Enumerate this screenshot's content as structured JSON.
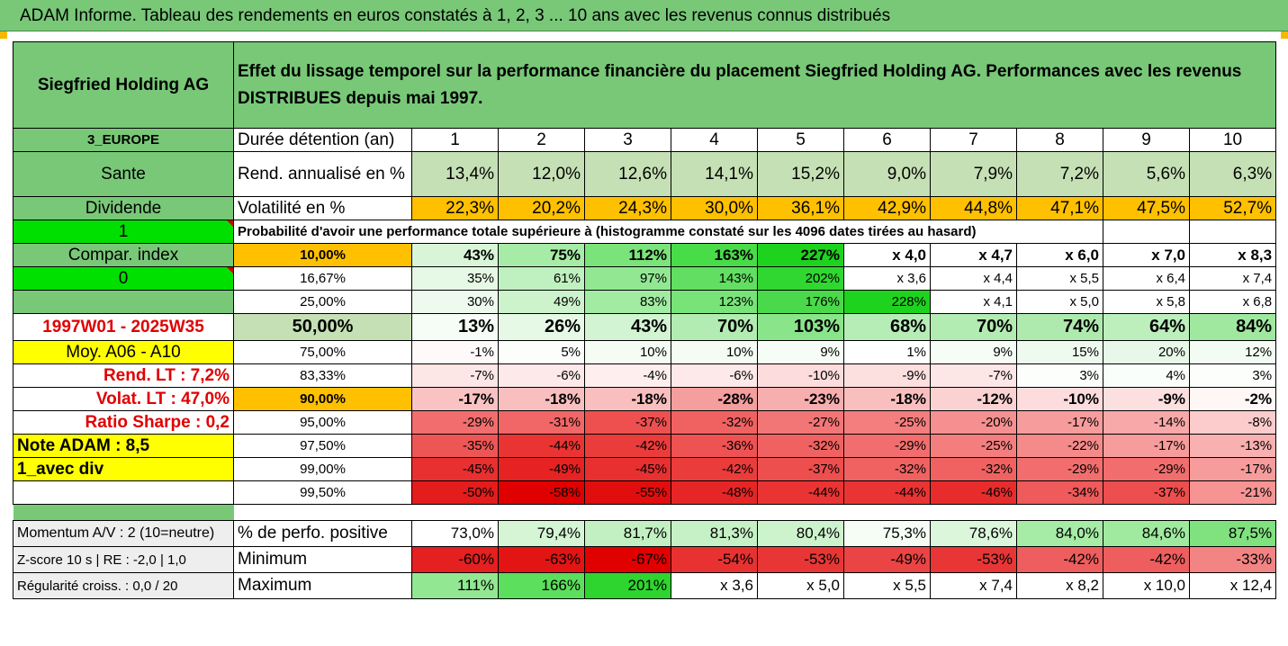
{
  "header": {
    "title": "ADAM Informe. Tableau des rendements en euros constatés à 1, 2, 3 ... 10 ans avec les revenus connus distribués"
  },
  "side": {
    "company": "Siegfried Holding AG",
    "region": "3_EUROPE",
    "sector": "Sante",
    "mode": "Dividende",
    "flag1": "1",
    "compar_label": "Compar. index",
    "flag0": "0",
    "period": "1997W01 - 2025W35",
    "moy": "Moy. A06 - A10",
    "rend_lt": "Rend. LT :   7,2%",
    "volat_lt": "Volat. LT :   47,0%",
    "sharpe": "Ratio Sharpe :   0,2",
    "note": "Note ADAM : 8,5",
    "avec_div": "1_avec div",
    "momentum": "Momentum A/V : 2 (10=neutre)",
    "zscore": "Z-score 10 s  |  RE : -2,0  |  1,0",
    "regularite": "Régularité croiss. : 0,0 / 20"
  },
  "description": "Effet du lissage temporel sur la performance financière du placement Siegfried Holding AG. Performances avec les revenus DISTRIBUES depuis mai 1997.",
  "years_label": "Durée détention (an)",
  "years": [
    "1",
    "2",
    "3",
    "4",
    "5",
    "6",
    "7",
    "8",
    "9",
    "10"
  ],
  "rend": {
    "label": "Rend. annualisé en %",
    "values": [
      "13,4%",
      "12,0%",
      "12,6%",
      "14,1%",
      "15,2%",
      "9,0%",
      "7,9%",
      "7,2%",
      "5,6%",
      "6,3%"
    ]
  },
  "vol": {
    "label": "Volatilité en %",
    "values": [
      "22,3%",
      "20,2%",
      "24,3%",
      "30,0%",
      "36,1%",
      "42,9%",
      "44,8%",
      "47,1%",
      "47,5%",
      "52,7%"
    ]
  },
  "prob_title": "Probabilité d'avoir une performance totale supérieure à (histogramme constaté sur les 4096 dates tirées au hasard)",
  "prob_rows": [
    {
      "label": "10,00%",
      "values": [
        "43%",
        "75%",
        "112%",
        "163%",
        "227%",
        "x 4,0",
        "x 4,7",
        "x 6,0",
        "x 7,0",
        "x 8,3"
      ],
      "colors": [
        "#d8f5d8",
        "#a6eca6",
        "#7ae47a",
        "#48dc48",
        "#1ed31e",
        "#ffffff",
        "#ffffff",
        "#ffffff",
        "#ffffff",
        "#ffffff"
      ]
    },
    {
      "label": "16,67%",
      "values": [
        "35%",
        "61%",
        "97%",
        "143%",
        "202%",
        "x 3,6",
        "x 4,4",
        "x 5,5",
        "x 6,4",
        "x 7,4"
      ],
      "colors": [
        "#e6f8e6",
        "#bff0bf",
        "#92e892",
        "#62df62",
        "#30d730",
        "#ffffff",
        "#ffffff",
        "#ffffff",
        "#ffffff",
        "#ffffff"
      ]
    },
    {
      "label": "25,00%",
      "values": [
        "30%",
        "49%",
        "83%",
        "123%",
        "176%",
        "228%",
        "x 4,1",
        "x 5,0",
        "x 5,8",
        "x 6,8"
      ],
      "colors": [
        "#eefaee",
        "#cdf3cd",
        "#a2eba2",
        "#78e378",
        "#4ad94a",
        "#1ed31e",
        "#ffffff",
        "#ffffff",
        "#ffffff",
        "#ffffff"
      ]
    },
    {
      "label": "50,00%",
      "values": [
        "13%",
        "26%",
        "43%",
        "70%",
        "103%",
        "68%",
        "70%",
        "74%",
        "64%",
        "84%"
      ],
      "colors": [
        "#f6fdf6",
        "#e6f8e6",
        "#d2f4d2",
        "#b2ecb2",
        "#8ae58a",
        "#b6edb6",
        "#b2ecb2",
        "#aeeaae",
        "#bcefbc",
        "#a0e8a0"
      ]
    },
    {
      "label": "75,00%",
      "values": [
        "-1%",
        "5%",
        "10%",
        "10%",
        "9%",
        "1%",
        "9%",
        "15%",
        "20%",
        "12%"
      ],
      "colors": [
        "#fffafa",
        "#fbfefb",
        "#f4fcf4",
        "#f4fcf4",
        "#f6fdf6",
        "#feffff",
        "#f6fdf6",
        "#eefaee",
        "#e8f8e8",
        "#f2fcf2"
      ]
    },
    {
      "label": "83,33%",
      "values": [
        "-7%",
        "-6%",
        "-4%",
        "-6%",
        "-10%",
        "-9%",
        "-7%",
        "3%",
        "4%",
        "3%"
      ],
      "colors": [
        "#fde6e6",
        "#fde9e9",
        "#feeeee",
        "#fde9e9",
        "#fcdcdc",
        "#fcdfdf",
        "#fde6e6",
        "#fcfefc",
        "#fafefa",
        "#fcfefc"
      ]
    },
    {
      "label": "90,00%",
      "values": [
        "-17%",
        "-18%",
        "-18%",
        "-28%",
        "-23%",
        "-18%",
        "-12%",
        "-10%",
        "-9%",
        "-2%"
      ],
      "colors": [
        "#f9c3c3",
        "#f9bfbf",
        "#f9bfbf",
        "#f59e9e",
        "#f7aeae",
        "#f9bfbf",
        "#fbd2d2",
        "#fcdcdc",
        "#fcdfdf",
        "#fff6f6"
      ]
    },
    {
      "label": "95,00%",
      "values": [
        "-29%",
        "-31%",
        "-37%",
        "-32%",
        "-27%",
        "-25%",
        "-20%",
        "-17%",
        "-14%",
        "-8%"
      ],
      "colors": [
        "#f26e6e",
        "#f16666",
        "#ee5050",
        "#f06262",
        "#f37676",
        "#f47e7e",
        "#f69090",
        "#f79c9c",
        "#f8a8a8",
        "#fccccc"
      ]
    },
    {
      "label": "97,50%",
      "values": [
        "-35%",
        "-44%",
        "-42%",
        "-36%",
        "-32%",
        "-29%",
        "-25%",
        "-22%",
        "-17%",
        "-13%"
      ],
      "colors": [
        "#ee5656",
        "#ea3434",
        "#eb3c3c",
        "#ee5252",
        "#f06262",
        "#f26e6e",
        "#f47e7e",
        "#f58a8a",
        "#f79c9c",
        "#f9b0b0"
      ]
    },
    {
      "label": "99,00%",
      "values": [
        "-45%",
        "-49%",
        "-45%",
        "-42%",
        "-37%",
        "-32%",
        "-32%",
        "-29%",
        "-29%",
        "-17%"
      ],
      "colors": [
        "#e83030",
        "#e62222",
        "#e83030",
        "#eb3c3c",
        "#ed4e4e",
        "#f06262",
        "#f06262",
        "#f26e6e",
        "#f26e6e",
        "#f79c9c"
      ]
    },
    {
      "label": "99,50%",
      "values": [
        "-50%",
        "-58%",
        "-55%",
        "-48%",
        "-44%",
        "-44%",
        "-46%",
        "-34%",
        "-37%",
        "-21%"
      ],
      "colors": [
        "#e41c1c",
        "#e00000",
        "#e20e0e",
        "#e62626",
        "#ea3434",
        "#ea3434",
        "#e82c2c",
        "#ef5a5a",
        "#ed4e4e",
        "#f69494"
      ]
    }
  ],
  "bottom_rows": [
    {
      "label": "% de perfo. positive",
      "values": [
        "73,0%",
        "79,4%",
        "81,7%",
        "81,3%",
        "80,4%",
        "75,3%",
        "78,6%",
        "84,0%",
        "84,6%",
        "87,5%"
      ],
      "colors": [
        "#ffffff",
        "#d5f5d5",
        "#c2f0c2",
        "#c6f1c6",
        "#cdf3cd",
        "#f5fdf5",
        "#dcf6dc",
        "#a6eca6",
        "#a0eaa0",
        "#7fe27f"
      ]
    },
    {
      "label": "Minimum",
      "values": [
        "-60%",
        "-63%",
        "-67%",
        "-54%",
        "-53%",
        "-49%",
        "-53%",
        "-42%",
        "-42%",
        "-33%"
      ],
      "colors": [
        "#e42020",
        "#e21414",
        "#e00000",
        "#e83232",
        "#e83636",
        "#eb4444",
        "#e83636",
        "#ee5e5e",
        "#ee5e5e",
        "#f38484"
      ]
    },
    {
      "label": "Maximum",
      "values": [
        "111%",
        "166%",
        "201%",
        "x 3,6",
        "x 5,0",
        "x 5,5",
        "x 7,4",
        "x 8,2",
        "x 10,0",
        "x 12,4"
      ],
      "colors": [
        "#92e892",
        "#5cdf5c",
        "#2ed52e",
        "#ffffff",
        "#ffffff",
        "#ffffff",
        "#ffffff",
        "#ffffff",
        "#ffffff",
        "#ffffff"
      ]
    }
  ],
  "colors": {
    "header_green": "#78c878",
    "light_green": "#c5e0b4",
    "orange": "#ffc000",
    "bright_green": "#00e000",
    "yellow": "#ffff00",
    "red_text": "#e00000"
  }
}
